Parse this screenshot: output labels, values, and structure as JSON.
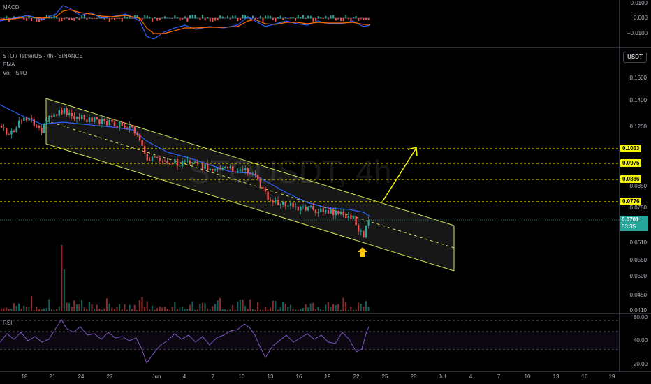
{
  "macd": {
    "title": "MACD",
    "ticks": [
      "0.0100",
      "0.000",
      "−0.0100"
    ]
  },
  "main": {
    "symbol": "STO / TetherUS · 4h · BINANCE",
    "ema_label": "EMA",
    "vol_label": "Vol · STO",
    "watermark": "STOUSDT, 4h",
    "currency": "USDT",
    "price_ticks": [
      "0.1600",
      "0.1400",
      "0.1200",
      "0.0850",
      "0.0750",
      "0.0610",
      "0.0550",
      "0.0500",
      "0.0450",
      "0.0410"
    ],
    "levels": [
      "0.1063",
      "0.0975",
      "0.0886",
      "0.0776"
    ],
    "current_price": "0.0701",
    "countdown": "53:35"
  },
  "rsi": {
    "title": "RSI",
    "ticks": [
      "80.00",
      "40.00",
      "20.00"
    ]
  },
  "time_axis": {
    "labels": [
      "18",
      "21",
      "24",
      "27",
      "Jun",
      "4",
      "7",
      "10",
      "13",
      "16",
      "19",
      "22",
      "25",
      "28",
      "Jul",
      "4",
      "7",
      "10",
      "13",
      "16",
      "19"
    ]
  },
  "colors": {
    "level": "#f5f500",
    "ema": "#2962ff",
    "up": "#26a69a",
    "down": "#ef5350",
    "rsi": "#7e57c2",
    "channel": "#d4e157"
  }
}
